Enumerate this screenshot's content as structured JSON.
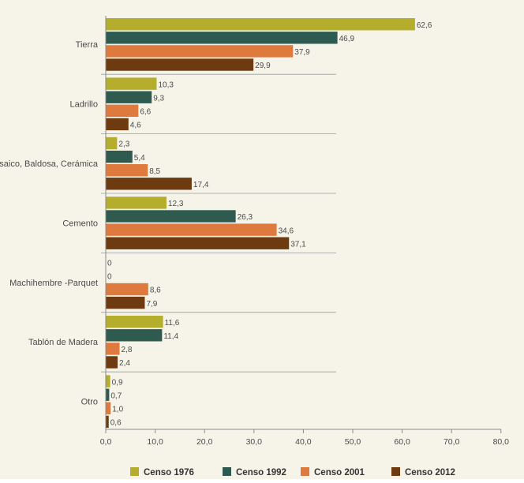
{
  "chart_data": {
    "type": "bar",
    "orientation": "horizontal",
    "title": "",
    "xlabel": "",
    "ylabel": "",
    "categories": [
      "Tierra",
      "Ladrillo",
      "Mosaico, Baldosa, Cerámica",
      "Cemento",
      "Machihembre -Parquet",
      "Tablón de Madera",
      "Otro"
    ],
    "series": [
      {
        "name": "Censo 1976",
        "color": "#b5ad2c",
        "values": [
          62.6,
          10.3,
          2.3,
          12.3,
          0,
          11.6,
          0.9
        ],
        "labels": [
          "62,6",
          "10,3",
          "2,3",
          "12,3",
          "0",
          "11,6",
          "0,9"
        ]
      },
      {
        "name": "Censo 1992",
        "color": "#2f5a50",
        "values": [
          46.9,
          9.3,
          5.4,
          26.3,
          0,
          11.4,
          0.7
        ],
        "labels": [
          "46,9",
          "9,3",
          "5,4",
          "26,3",
          "0",
          "11,4",
          "0,7"
        ]
      },
      {
        "name": "Censo 2001",
        "color": "#de7a3e",
        "values": [
          37.9,
          6.6,
          8.5,
          34.6,
          8.6,
          2.8,
          1.0
        ],
        "labels": [
          "37,9",
          "6,6",
          "8,5",
          "34,6",
          "8,6",
          "2,8",
          "1,0"
        ]
      },
      {
        "name": "Censo 2012",
        "color": "#6e3a0f",
        "values": [
          29.9,
          4.6,
          17.4,
          37.1,
          7.9,
          2.4,
          0.6
        ],
        "labels": [
          "29,9",
          "4,6",
          "17,4",
          "37,1",
          "7,9",
          "2,4",
          "0,6"
        ]
      }
    ],
    "xlim": [
      0,
      80
    ],
    "xticks": [
      0,
      10,
      20,
      30,
      40,
      50,
      60,
      70,
      80
    ],
    "xtick_labels": [
      "0,0",
      "10,0",
      "20,0",
      "30,0",
      "40,0",
      "50,0",
      "60,0",
      "70,0",
      "80,0"
    ],
    "grid": false,
    "legend_position": "bottom"
  }
}
